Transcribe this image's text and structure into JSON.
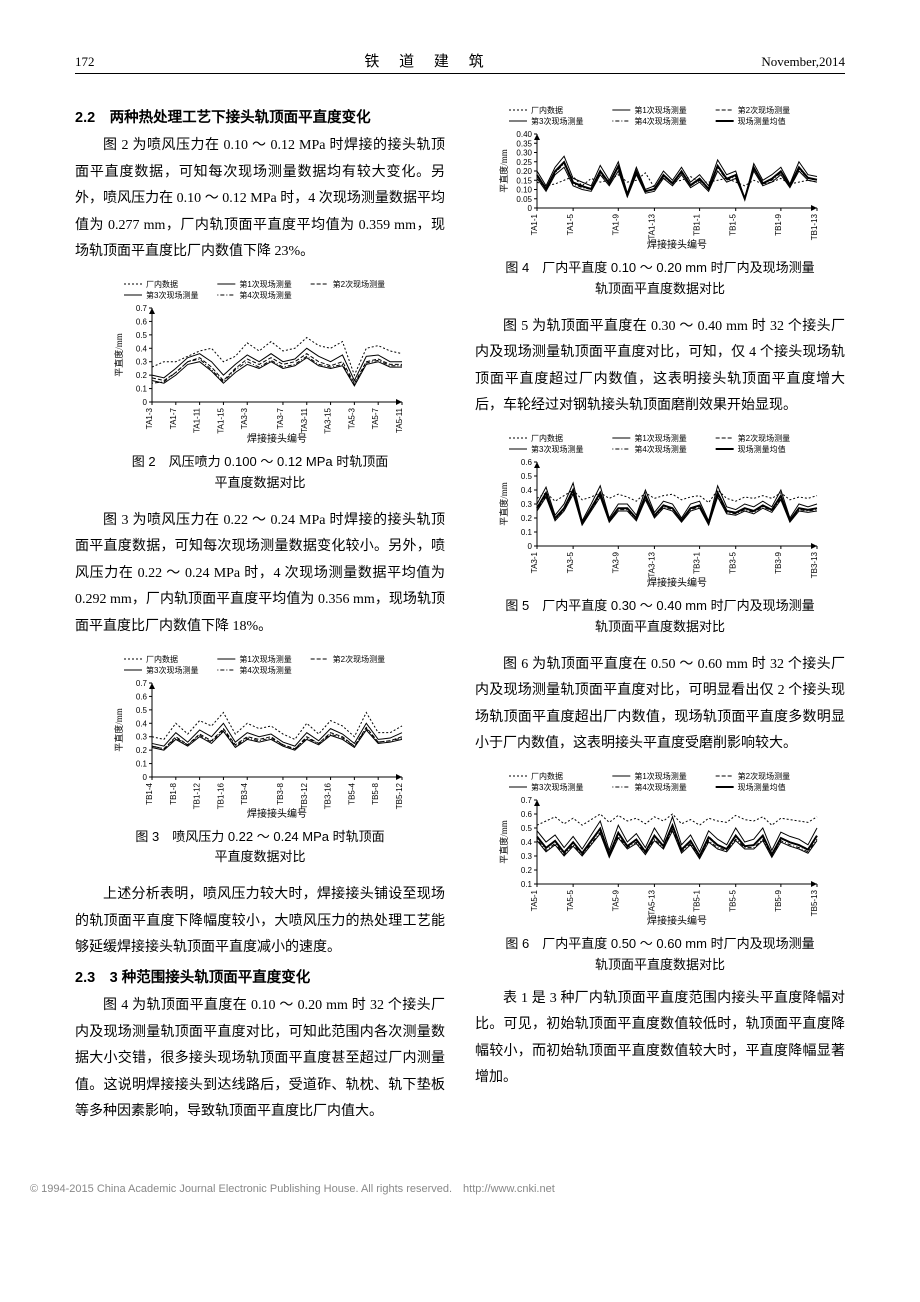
{
  "header": {
    "page": "172",
    "journal": "铁 道 建 筑",
    "date": "November,2014"
  },
  "sec22": {
    "title": "2.2　两种热处理工艺下接头轨顶面平直度变化",
    "p1": "图 2 为喷风压力在 0.10 ～ 0.12 MPa 时焊接的接头轨顶面平直度数据，可知每次现场测量数据均有较大变化。另外，喷风压力在 0.10 ～ 0.12 MPa 时，4 次现场测量数据平均值为 0.277 mm，厂内轨顶面平直度平均值为 0.359 mm，现场轨顶面平直度比厂内数值下降 23%。",
    "p2": "图 3 为喷风压力在 0.22 ～ 0.24 MPa 时焊接的接头轨顶面平直度数据，可知每次现场测量数据变化较小。另外，喷风压力在 0.22 ～ 0.24 MPa 时，4 次现场测量数据平均值为 0.292 mm，厂内轨顶面平直度平均值为 0.356 mm，现场轨顶面平直度比厂内数值下降 18%。",
    "p3": "上述分析表明，喷风压力较大时，焊接接头铺设至现场的轨顶面平直度下降幅度较小，大喷风压力的热处理工艺能够延缓焊接接头轨顶面平直度减小的速度。"
  },
  "sec23": {
    "title": "2.3　3 种范围接头轨顶面平直度变化",
    "p1": "图 4 为轨顶面平直度在 0.10 ～ 0.20 mm 时 32 个接头厂内及现场测量轨顶面平直度对比，可知此范围内各次测量数据大小交错，很多接头现场轨顶面平直度甚至超过厂内测量值。这说明焊接接头到达线路后，受道砟、轨枕、轨下垫板等多种因素影响，导致轨顶面平直度比厂内值大。",
    "p2": "图 5 为轨顶面平直度在 0.30 ～ 0.40 mm 时 32 个接头厂内及现场测量轨顶面平直度对比，可知，仅 4 个接头现场轨顶面平直度超过厂内数值，这表明接头轨顶面平直度增大后，车轮经过对钢轨接头轨顶面磨削效果开始显现。",
    "p3": "图 6 为轨顶面平直度在 0.50 ～ 0.60 mm 时 32 个接头厂内及现场测量轨顶面平直度对比，可明显看出仅 2 个接头现场轨顶面平直度超出厂内数值，现场轨顶面平直度多数明显小于厂内数值，这表明接头平直度受磨削影响较大。",
    "p4": "表 1 是 3 种厂内轨顶面平直度范围内接头平直度降幅对比。可见，初始轨顶面平直度数值较低时，轨顶面平直度降幅较小，而初始轨顶面平直度数值较大时，平直度降幅显著增加。"
  },
  "fig2": {
    "caption_l1": "图 2　风压喷力 0.100 ～ 0.12 MPa 时轨顶面",
    "caption_l2": "平直度数据对比",
    "type": "line",
    "ylabel": "平直度/mm",
    "xlabel": "焊接接头编号",
    "ylim": [
      0,
      0.7
    ],
    "ytick_step": 0.1,
    "yticks": [
      "0",
      "0.1",
      "0.2",
      "0.3",
      "0.4",
      "0.5",
      "0.6",
      "0.7"
    ],
    "xticks": [
      "TA1-3",
      "TA1-7",
      "TA1-11",
      "TA1-15",
      "TA3-3",
      "TA3-7",
      "TA3-11",
      "TA3-15",
      "TA5-3",
      "TA5-7",
      "TA5-11"
    ],
    "legend5": [
      "厂内数据",
      "第1次现场测量",
      "第2次现场测量",
      "第3次现场测量",
      "第4次现场测量"
    ],
    "colors": {
      "factory": "#000000",
      "m1": "#000000",
      "m2": "#000000",
      "m3": "#000000",
      "m4": "#000000",
      "bg": "#ffffff",
      "axis": "#000000"
    },
    "series": {
      "factory": [
        0.26,
        0.3,
        0.3,
        0.34,
        0.38,
        0.4,
        0.3,
        0.34,
        0.44,
        0.38,
        0.45,
        0.38,
        0.4,
        0.48,
        0.42,
        0.4,
        0.45,
        0.2,
        0.4,
        0.42,
        0.38,
        0.36
      ],
      "m1": [
        0.2,
        0.18,
        0.25,
        0.33,
        0.36,
        0.3,
        0.2,
        0.28,
        0.35,
        0.3,
        0.36,
        0.3,
        0.32,
        0.4,
        0.34,
        0.3,
        0.35,
        0.16,
        0.34,
        0.35,
        0.3,
        0.3
      ],
      "m2": [
        0.18,
        0.16,
        0.22,
        0.3,
        0.33,
        0.26,
        0.16,
        0.25,
        0.32,
        0.28,
        0.33,
        0.28,
        0.3,
        0.36,
        0.3,
        0.27,
        0.3,
        0.14,
        0.3,
        0.32,
        0.28,
        0.28
      ],
      "m3": [
        0.16,
        0.14,
        0.2,
        0.28,
        0.3,
        0.23,
        0.14,
        0.22,
        0.28,
        0.25,
        0.3,
        0.25,
        0.27,
        0.33,
        0.27,
        0.25,
        0.27,
        0.12,
        0.28,
        0.3,
        0.26,
        0.26
      ],
      "m4": [
        0.14,
        0.15,
        0.22,
        0.3,
        0.32,
        0.24,
        0.15,
        0.24,
        0.3,
        0.26,
        0.31,
        0.26,
        0.28,
        0.34,
        0.28,
        0.26,
        0.28,
        0.13,
        0.29,
        0.31,
        0.27,
        0.27
      ]
    },
    "line_width": 1
  },
  "fig3": {
    "caption_l1": "图 3　喷风压力 0.22 ～ 0.24 MPa 时轨顶面",
    "caption_l2": "平直度数据对比",
    "type": "line",
    "ylabel": "平直度/mm",
    "xlabel": "焊接接头编号",
    "ylim": [
      0,
      0.7
    ],
    "ytick_step": 0.1,
    "yticks": [
      "0",
      "0.1",
      "0.2",
      "0.3",
      "0.4",
      "0.5",
      "0.6",
      "0.7"
    ],
    "xticks": [
      "TB1-4",
      "TB1-8",
      "TB1-12",
      "TB1-16",
      "TB3-4",
      "TB3-8",
      "TB3-12",
      "TB3-16",
      "TB5-4",
      "TB5-8",
      "TB5-12"
    ],
    "legend5": [
      "厂内数据",
      "第1次现场测量",
      "第2次现场测量",
      "第3次现场测量",
      "第4次现场测量"
    ],
    "colors": {
      "factory": "#000000",
      "m1": "#000000",
      "m2": "#000000",
      "m3": "#000000",
      "m4": "#000000",
      "bg": "#ffffff",
      "axis": "#000000"
    },
    "series": {
      "factory": [
        0.3,
        0.28,
        0.4,
        0.32,
        0.42,
        0.38,
        0.48,
        0.32,
        0.4,
        0.36,
        0.38,
        0.32,
        0.28,
        0.4,
        0.32,
        0.42,
        0.38,
        0.3,
        0.48,
        0.33,
        0.33,
        0.38
      ],
      "m1": [
        0.25,
        0.23,
        0.33,
        0.26,
        0.35,
        0.3,
        0.4,
        0.26,
        0.33,
        0.3,
        0.32,
        0.26,
        0.23,
        0.33,
        0.27,
        0.36,
        0.32,
        0.25,
        0.4,
        0.28,
        0.29,
        0.33
      ],
      "m2": [
        0.23,
        0.21,
        0.3,
        0.24,
        0.32,
        0.27,
        0.36,
        0.24,
        0.3,
        0.28,
        0.3,
        0.24,
        0.21,
        0.3,
        0.25,
        0.33,
        0.3,
        0.23,
        0.37,
        0.26,
        0.27,
        0.3
      ],
      "m3": [
        0.22,
        0.2,
        0.28,
        0.23,
        0.3,
        0.25,
        0.34,
        0.22,
        0.28,
        0.26,
        0.28,
        0.23,
        0.2,
        0.28,
        0.24,
        0.31,
        0.28,
        0.22,
        0.35,
        0.25,
        0.26,
        0.28
      ],
      "m4": [
        0.23,
        0.21,
        0.29,
        0.24,
        0.31,
        0.26,
        0.35,
        0.23,
        0.29,
        0.27,
        0.29,
        0.24,
        0.21,
        0.29,
        0.25,
        0.32,
        0.29,
        0.23,
        0.36,
        0.26,
        0.27,
        0.29
      ]
    },
    "line_width": 1
  },
  "fig4": {
    "caption_l1": "图 4　厂内平直度 0.10 ～ 0.20 mm 时厂内及现场测量",
    "caption_l2": "轨顶面平直度数据对比",
    "type": "line",
    "ylabel": "平直度/mm",
    "xlabel": "焊接接头编号",
    "ylim": [
      0,
      0.4
    ],
    "ytick_step": 0.05,
    "yticks": [
      "0",
      "0.05",
      "0.10",
      "0.15",
      "0.20",
      "0.25",
      "0.30",
      "0.35",
      "0.40"
    ],
    "xticks": [
      "TA1-1",
      "TA1-5",
      "TA1-9",
      "TA1-13",
      "TB1-1",
      "TB1-5",
      "TB1-9",
      "TB1-13"
    ],
    "legend6": [
      "厂内数据",
      "第1次现场测量",
      "第2次现场测量",
      "第3次现场测量",
      "第4次现场测量",
      "现场测量均值"
    ],
    "colors": {
      "factory": "#000000",
      "m1": "#000000",
      "m2": "#000000",
      "m3": "#000000",
      "m4": "#000000",
      "avg": "#000000",
      "bg": "#ffffff",
      "axis": "#000000"
    },
    "series": {
      "factory": [
        0.14,
        0.12,
        0.13,
        0.15,
        0.17,
        0.12,
        0.16,
        0.14,
        0.15,
        0.18,
        0.14,
        0.15,
        0.19,
        0.11,
        0.16,
        0.14,
        0.15,
        0.17,
        0.14,
        0.14,
        0.15,
        0.16,
        0.14,
        0.12,
        0.15,
        0.13,
        0.14,
        0.16,
        0.13,
        0.14,
        0.15,
        0.14
      ],
      "m1": [
        0.2,
        0.12,
        0.22,
        0.28,
        0.16,
        0.14,
        0.12,
        0.23,
        0.15,
        0.25,
        0.08,
        0.22,
        0.1,
        0.12,
        0.2,
        0.15,
        0.22,
        0.14,
        0.18,
        0.12,
        0.26,
        0.18,
        0.2,
        0.05,
        0.24,
        0.15,
        0.18,
        0.22,
        0.13,
        0.25,
        0.18,
        0.17
      ],
      "m2": [
        0.18,
        0.1,
        0.2,
        0.25,
        0.14,
        0.12,
        0.1,
        0.2,
        0.13,
        0.23,
        0.07,
        0.2,
        0.09,
        0.1,
        0.18,
        0.13,
        0.2,
        0.12,
        0.16,
        0.1,
        0.23,
        0.16,
        0.18,
        0.05,
        0.22,
        0.13,
        0.16,
        0.2,
        0.12,
        0.22,
        0.16,
        0.15
      ],
      "m3": [
        0.16,
        0.09,
        0.18,
        0.22,
        0.12,
        0.1,
        0.09,
        0.18,
        0.12,
        0.2,
        0.06,
        0.18,
        0.08,
        0.09,
        0.16,
        0.12,
        0.18,
        0.11,
        0.14,
        0.09,
        0.2,
        0.14,
        0.16,
        0.05,
        0.2,
        0.12,
        0.14,
        0.18,
        0.11,
        0.2,
        0.15,
        0.14
      ],
      "m4": [
        0.17,
        0.1,
        0.19,
        0.24,
        0.13,
        0.11,
        0.1,
        0.19,
        0.13,
        0.22,
        0.07,
        0.19,
        0.09,
        0.1,
        0.17,
        0.13,
        0.19,
        0.12,
        0.15,
        0.1,
        0.22,
        0.15,
        0.17,
        0.05,
        0.21,
        0.13,
        0.15,
        0.19,
        0.12,
        0.21,
        0.16,
        0.15
      ],
      "avg": [
        0.178,
        0.103,
        0.198,
        0.248,
        0.138,
        0.118,
        0.103,
        0.2,
        0.133,
        0.225,
        0.07,
        0.198,
        0.09,
        0.103,
        0.178,
        0.133,
        0.198,
        0.123,
        0.158,
        0.103,
        0.228,
        0.158,
        0.178,
        0.05,
        0.218,
        0.133,
        0.158,
        0.198,
        0.12,
        0.22,
        0.163,
        0.153
      ]
    },
    "line_width": 1,
    "avg_line_width": 2
  },
  "fig5": {
    "caption_l1": "图 5　厂内平直度 0.30 ～ 0.40 mm 时厂内及现场测量",
    "caption_l2": "轨顶面平直度数据对比",
    "type": "line",
    "ylabel": "平直度/mm",
    "xlabel": "焊接接头编号",
    "ylim": [
      0,
      0.6
    ],
    "ytick_step": 0.1,
    "yticks": [
      "0",
      "0.1",
      "0.2",
      "0.3",
      "0.4",
      "0.5",
      "0.6"
    ],
    "xticks": [
      "TA3-1",
      "TA3-5",
      "TA3-9",
      "TA3-13",
      "TB3-1",
      "TB3-5",
      "TB3-9",
      "TB3-13"
    ],
    "legend6": [
      "厂内数据",
      "第1次现场测量",
      "第2次现场测量",
      "第3次现场测量",
      "第4次现场测量",
      "现场测量均值"
    ],
    "colors": {
      "factory": "#000000",
      "m1": "#000000",
      "m2": "#000000",
      "m3": "#000000",
      "m4": "#000000",
      "avg": "#000000",
      "bg": "#ffffff",
      "axis": "#000000"
    },
    "series": {
      "factory": [
        0.34,
        0.38,
        0.32,
        0.36,
        0.4,
        0.33,
        0.35,
        0.38,
        0.34,
        0.37,
        0.35,
        0.32,
        0.38,
        0.34,
        0.36,
        0.37,
        0.33,
        0.35,
        0.36,
        0.31,
        0.4,
        0.34,
        0.32,
        0.35,
        0.34,
        0.36,
        0.34,
        0.38,
        0.33,
        0.35,
        0.34,
        0.36
      ],
      "m1": [
        0.3,
        0.42,
        0.22,
        0.3,
        0.45,
        0.18,
        0.3,
        0.43,
        0.2,
        0.3,
        0.3,
        0.22,
        0.4,
        0.24,
        0.32,
        0.3,
        0.2,
        0.3,
        0.32,
        0.18,
        0.43,
        0.28,
        0.26,
        0.3,
        0.28,
        0.32,
        0.28,
        0.4,
        0.2,
        0.3,
        0.28,
        0.3
      ],
      "m2": [
        0.27,
        0.38,
        0.2,
        0.27,
        0.4,
        0.16,
        0.27,
        0.38,
        0.18,
        0.27,
        0.27,
        0.2,
        0.36,
        0.22,
        0.29,
        0.27,
        0.18,
        0.27,
        0.29,
        0.16,
        0.38,
        0.25,
        0.24,
        0.27,
        0.25,
        0.29,
        0.26,
        0.36,
        0.18,
        0.27,
        0.26,
        0.27
      ],
      "m3": [
        0.25,
        0.35,
        0.18,
        0.25,
        0.37,
        0.15,
        0.25,
        0.35,
        0.17,
        0.25,
        0.25,
        0.18,
        0.33,
        0.2,
        0.27,
        0.25,
        0.17,
        0.25,
        0.27,
        0.15,
        0.35,
        0.23,
        0.22,
        0.25,
        0.23,
        0.27,
        0.24,
        0.33,
        0.17,
        0.25,
        0.24,
        0.25
      ],
      "m4": [
        0.26,
        0.36,
        0.19,
        0.26,
        0.38,
        0.16,
        0.26,
        0.36,
        0.18,
        0.26,
        0.26,
        0.19,
        0.34,
        0.21,
        0.28,
        0.26,
        0.18,
        0.26,
        0.28,
        0.16,
        0.36,
        0.24,
        0.23,
        0.26,
        0.24,
        0.28,
        0.25,
        0.34,
        0.18,
        0.26,
        0.25,
        0.26
      ],
      "avg": [
        0.27,
        0.378,
        0.198,
        0.27,
        0.4,
        0.163,
        0.27,
        0.38,
        0.183,
        0.27,
        0.27,
        0.198,
        0.358,
        0.218,
        0.29,
        0.27,
        0.183,
        0.27,
        0.29,
        0.163,
        0.38,
        0.25,
        0.238,
        0.27,
        0.25,
        0.29,
        0.258,
        0.358,
        0.183,
        0.27,
        0.258,
        0.27
      ]
    },
    "line_width": 1,
    "avg_line_width": 2
  },
  "fig6": {
    "caption_l1": "图 6　厂内平直度 0.50 ～ 0.60 mm 时厂内及现场测量",
    "caption_l2": "轨顶面平直度数据对比",
    "type": "line",
    "ylabel": "平直度/mm",
    "xlabel": "焊接接头编号",
    "ylim": [
      0.1,
      0.7
    ],
    "ytick_step": 0.1,
    "yticks": [
      "0.1",
      "0.2",
      "0.3",
      "0.4",
      "0.5",
      "0.6",
      "0.7"
    ],
    "xticks": [
      "TA5-1",
      "TA5-5",
      "TA5-9",
      "TA5-13",
      "TB5-1",
      "TB5-5",
      "TB5-9",
      "TB5-13"
    ],
    "legend6": [
      "厂内数据",
      "第1次现场测量",
      "第2次现场测量",
      "第3次现场测量",
      "第4次现场测量",
      "现场测量均值"
    ],
    "colors": {
      "factory": "#000000",
      "m1": "#000000",
      "m2": "#000000",
      "m3": "#000000",
      "m4": "#000000",
      "avg": "#000000",
      "bg": "#ffffff",
      "axis": "#000000"
    },
    "series": {
      "factory": [
        0.52,
        0.55,
        0.58,
        0.53,
        0.57,
        0.52,
        0.56,
        0.6,
        0.54,
        0.59,
        0.55,
        0.57,
        0.53,
        0.58,
        0.55,
        0.6,
        0.53,
        0.56,
        0.52,
        0.57,
        0.55,
        0.54,
        0.59,
        0.56,
        0.55,
        0.58,
        0.52,
        0.57,
        0.56,
        0.55,
        0.54,
        0.58
      ],
      "m1": [
        0.48,
        0.4,
        0.45,
        0.36,
        0.44,
        0.35,
        0.45,
        0.55,
        0.34,
        0.52,
        0.4,
        0.46,
        0.36,
        0.5,
        0.4,
        0.58,
        0.38,
        0.45,
        0.33,
        0.48,
        0.42,
        0.38,
        0.5,
        0.4,
        0.42,
        0.5,
        0.34,
        0.47,
        0.44,
        0.42,
        0.38,
        0.5
      ],
      "m2": [
        0.44,
        0.36,
        0.41,
        0.33,
        0.4,
        0.32,
        0.41,
        0.5,
        0.31,
        0.47,
        0.37,
        0.42,
        0.33,
        0.45,
        0.37,
        0.52,
        0.35,
        0.41,
        0.3,
        0.44,
        0.38,
        0.35,
        0.45,
        0.37,
        0.38,
        0.45,
        0.31,
        0.43,
        0.4,
        0.38,
        0.35,
        0.45
      ],
      "m3": [
        0.41,
        0.33,
        0.38,
        0.3,
        0.37,
        0.3,
        0.38,
        0.46,
        0.29,
        0.43,
        0.35,
        0.39,
        0.31,
        0.41,
        0.35,
        0.48,
        0.32,
        0.38,
        0.28,
        0.4,
        0.35,
        0.33,
        0.41,
        0.35,
        0.35,
        0.41,
        0.29,
        0.4,
        0.37,
        0.35,
        0.32,
        0.41
      ],
      "m4": [
        0.42,
        0.34,
        0.39,
        0.31,
        0.38,
        0.31,
        0.39,
        0.47,
        0.3,
        0.44,
        0.36,
        0.4,
        0.32,
        0.42,
        0.36,
        0.49,
        0.33,
        0.39,
        0.29,
        0.41,
        0.36,
        0.34,
        0.42,
        0.36,
        0.36,
        0.42,
        0.3,
        0.41,
        0.38,
        0.36,
        0.33,
        0.42
      ],
      "avg": [
        0.438,
        0.358,
        0.408,
        0.325,
        0.398,
        0.32,
        0.408,
        0.495,
        0.31,
        0.465,
        0.37,
        0.418,
        0.33,
        0.445,
        0.37,
        0.518,
        0.345,
        0.408,
        0.3,
        0.433,
        0.378,
        0.35,
        0.445,
        0.37,
        0.378,
        0.445,
        0.31,
        0.428,
        0.398,
        0.378,
        0.345,
        0.445
      ]
    },
    "line_width": 1,
    "avg_line_width": 2
  },
  "footer": "© 1994-2015 China Academic Journal Electronic Publishing House. All rights reserved.　http://www.cnki.net"
}
